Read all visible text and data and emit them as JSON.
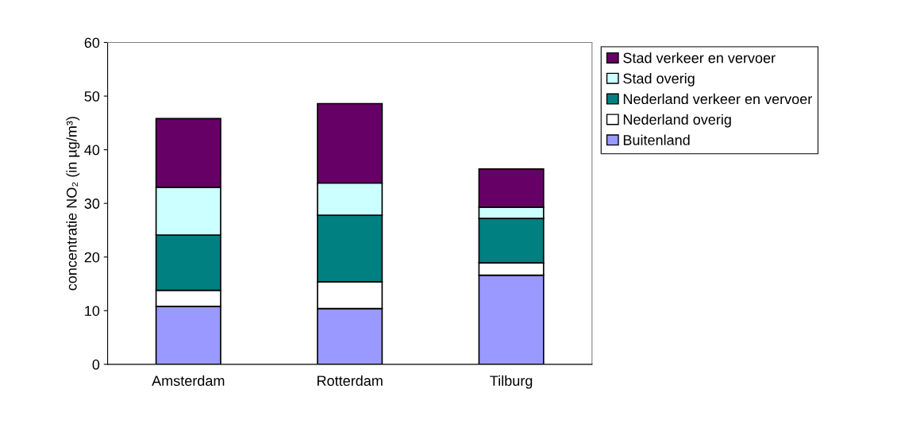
{
  "chart_data": {
    "type": "bar",
    "stacked": true,
    "ylabel": "concentratie NO₂ (in µg/m³)",
    "categories": [
      "Amsterdam",
      "Rotterdam",
      "Tilburg"
    ],
    "series": [
      {
        "name": "Buitenland",
        "color": "#9999ff",
        "values": [
          10.8,
          10.4,
          16.6
        ]
      },
      {
        "name": "Nederland overig",
        "color": "#ffffff",
        "values": [
          3.0,
          5.0,
          2.3
        ]
      },
      {
        "name": "Nederland verkeer en vervoer",
        "color": "#008080",
        "values": [
          10.3,
          12.4,
          8.3
        ]
      },
      {
        "name": "Stad overig",
        "color": "#ccffff",
        "values": [
          8.9,
          6.0,
          2.1
        ]
      },
      {
        "name": "Stad verkeer en vervoer",
        "color": "#660066",
        "values": [
          12.8,
          14.8,
          7.1
        ]
      }
    ],
    "ylim": [
      0,
      60
    ],
    "yticks": [
      0,
      10,
      20,
      30,
      40,
      50,
      60
    ],
    "grid": false,
    "legend": "right"
  }
}
